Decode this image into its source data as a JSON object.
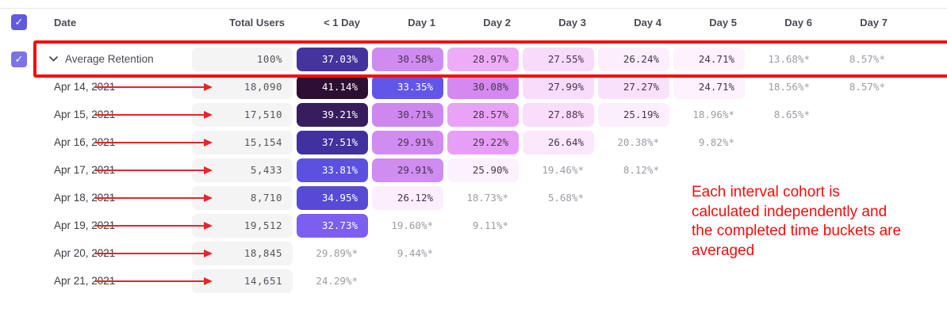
{
  "table": {
    "columns": [
      "Date",
      "Total Users",
      "< 1 Day",
      "Day 1",
      "Day 2",
      "Day 3",
      "Day 4",
      "Day 5",
      "Day 6",
      "Day 7"
    ],
    "rows": [
      {
        "label": "Average Retention",
        "is_average": true,
        "checked": true,
        "total": "100%",
        "cells": [
          {
            "t": "37.03%",
            "bg": "#45339e",
            "fg": "#ffffff"
          },
          {
            "t": "30.58%",
            "bg": "#cf8bf0",
            "fg": "#4a3550"
          },
          {
            "t": "28.97%",
            "bg": "#eeacf7",
            "fg": "#4a3550"
          },
          {
            "t": "27.55%",
            "bg": "#f8dafa",
            "fg": "#4a3550"
          },
          {
            "t": "26.24%",
            "bg": "#fceefd",
            "fg": "#4a3550"
          },
          {
            "t": "24.71%",
            "bg": "#fdf2fd",
            "fg": "#4a3550"
          },
          {
            "t": "13.68%*",
            "muted": true
          },
          {
            "t": "8.57%*",
            "muted": true
          }
        ]
      },
      {
        "label": "Apr 14, 2021",
        "total": "18,090",
        "arrow": true,
        "cells": [
          {
            "t": "41.14%",
            "bg": "#2c0f33",
            "fg": "#ffffff"
          },
          {
            "t": "33.35%",
            "bg": "#6156e8",
            "fg": "#ffffff"
          },
          {
            "t": "30.08%",
            "bg": "#d488f0",
            "fg": "#4a3550"
          },
          {
            "t": "27.99%",
            "bg": "#f9dcfb",
            "fg": "#4a3550"
          },
          {
            "t": "27.27%",
            "bg": "#fae1fb",
            "fg": "#4a3550"
          },
          {
            "t": "24.71%",
            "bg": "#fdf2fd",
            "fg": "#4a3550"
          },
          {
            "t": "18.56%*",
            "muted": true
          },
          {
            "t": "8.57%*",
            "muted": true
          }
        ]
      },
      {
        "label": "Apr 15, 2021",
        "total": "17,510",
        "arrow": true,
        "cells": [
          {
            "t": "39.21%",
            "bg": "#371d5e",
            "fg": "#ffffff"
          },
          {
            "t": "30.71%",
            "bg": "#cd87ef",
            "fg": "#4a3550"
          },
          {
            "t": "28.57%",
            "bg": "#e9a2f6",
            "fg": "#4a3550"
          },
          {
            "t": "27.88%",
            "bg": "#f9ddfb",
            "fg": "#4a3550"
          },
          {
            "t": "25.19%",
            "bg": "#fceffd",
            "fg": "#4a3550"
          },
          {
            "t": "18.96%*",
            "muted": true
          },
          {
            "t": "8.65%*",
            "muted": true
          }
        ]
      },
      {
        "label": "Apr 16, 2021",
        "total": "15,154",
        "arrow": true,
        "cells": [
          {
            "t": "37.51%",
            "bg": "#41309f",
            "fg": "#ffffff"
          },
          {
            "t": "29.91%",
            "bg": "#d08cf0",
            "fg": "#4a3550"
          },
          {
            "t": "29.22%",
            "bg": "#e79ef7",
            "fg": "#4a3550"
          },
          {
            "t": "26.64%",
            "bg": "#fbe8fc",
            "fg": "#4a3550"
          },
          {
            "t": "20.38%*",
            "muted": true
          },
          {
            "t": "9.82%*",
            "muted": true
          }
        ]
      },
      {
        "label": "Apr 17, 2021",
        "total": "5,433",
        "arrow": true,
        "cells": [
          {
            "t": "33.81%",
            "bg": "#5b50e0",
            "fg": "#ffffff"
          },
          {
            "t": "29.91%",
            "bg": "#d08cf0",
            "fg": "#4a3550"
          },
          {
            "t": "25.90%",
            "bg": "#fdf1fd",
            "fg": "#4a3550"
          },
          {
            "t": "19.46%*",
            "muted": true
          },
          {
            "t": "8.12%*",
            "muted": true
          }
        ]
      },
      {
        "label": "Apr 18, 2021",
        "total": "8,710",
        "arrow": true,
        "cells": [
          {
            "t": "34.95%",
            "bg": "#574ad6",
            "fg": "#ffffff"
          },
          {
            "t": "26.12%",
            "bg": "#fceefd",
            "fg": "#4a3550"
          },
          {
            "t": "18.73%*",
            "muted": true
          },
          {
            "t": "5.68%*",
            "muted": true
          }
        ]
      },
      {
        "label": "Apr 19, 2021",
        "total": "19,512",
        "arrow": true,
        "cells": [
          {
            "t": "32.73%",
            "bg": "#7c5ef0",
            "fg": "#ffffff"
          },
          {
            "t": "19.60%*",
            "muted": true
          },
          {
            "t": "9.11%*",
            "muted": true
          }
        ]
      },
      {
        "label": "Apr 20, 2021",
        "total": "18,845",
        "arrow": true,
        "cells": [
          {
            "t": "29.89%*",
            "muted": true
          },
          {
            "t": "9.44%*",
            "muted": true
          }
        ]
      },
      {
        "label": "Apr 21, 2021",
        "total": "14,651",
        "arrow": true,
        "cells": [
          {
            "t": "24.29%*",
            "muted": true
          }
        ]
      }
    ]
  },
  "annotations": {
    "note_lines": [
      "Each interval cohort is",
      "calculated independently and",
      "the completed time buckets are",
      "averaged"
    ],
    "note_color": "#fb0b0b",
    "highlight_color": "#f50f0f",
    "arrow_color": "#e8252a"
  },
  "colors": {
    "header_checkbox": "#6159e0",
    "row_checkbox": "#7b74e8",
    "check_glyph": "✓",
    "muted_text": "#9c9ca4",
    "gray_cell_bg": "#f4f4f5",
    "gray_cell_text": "#55555e"
  }
}
